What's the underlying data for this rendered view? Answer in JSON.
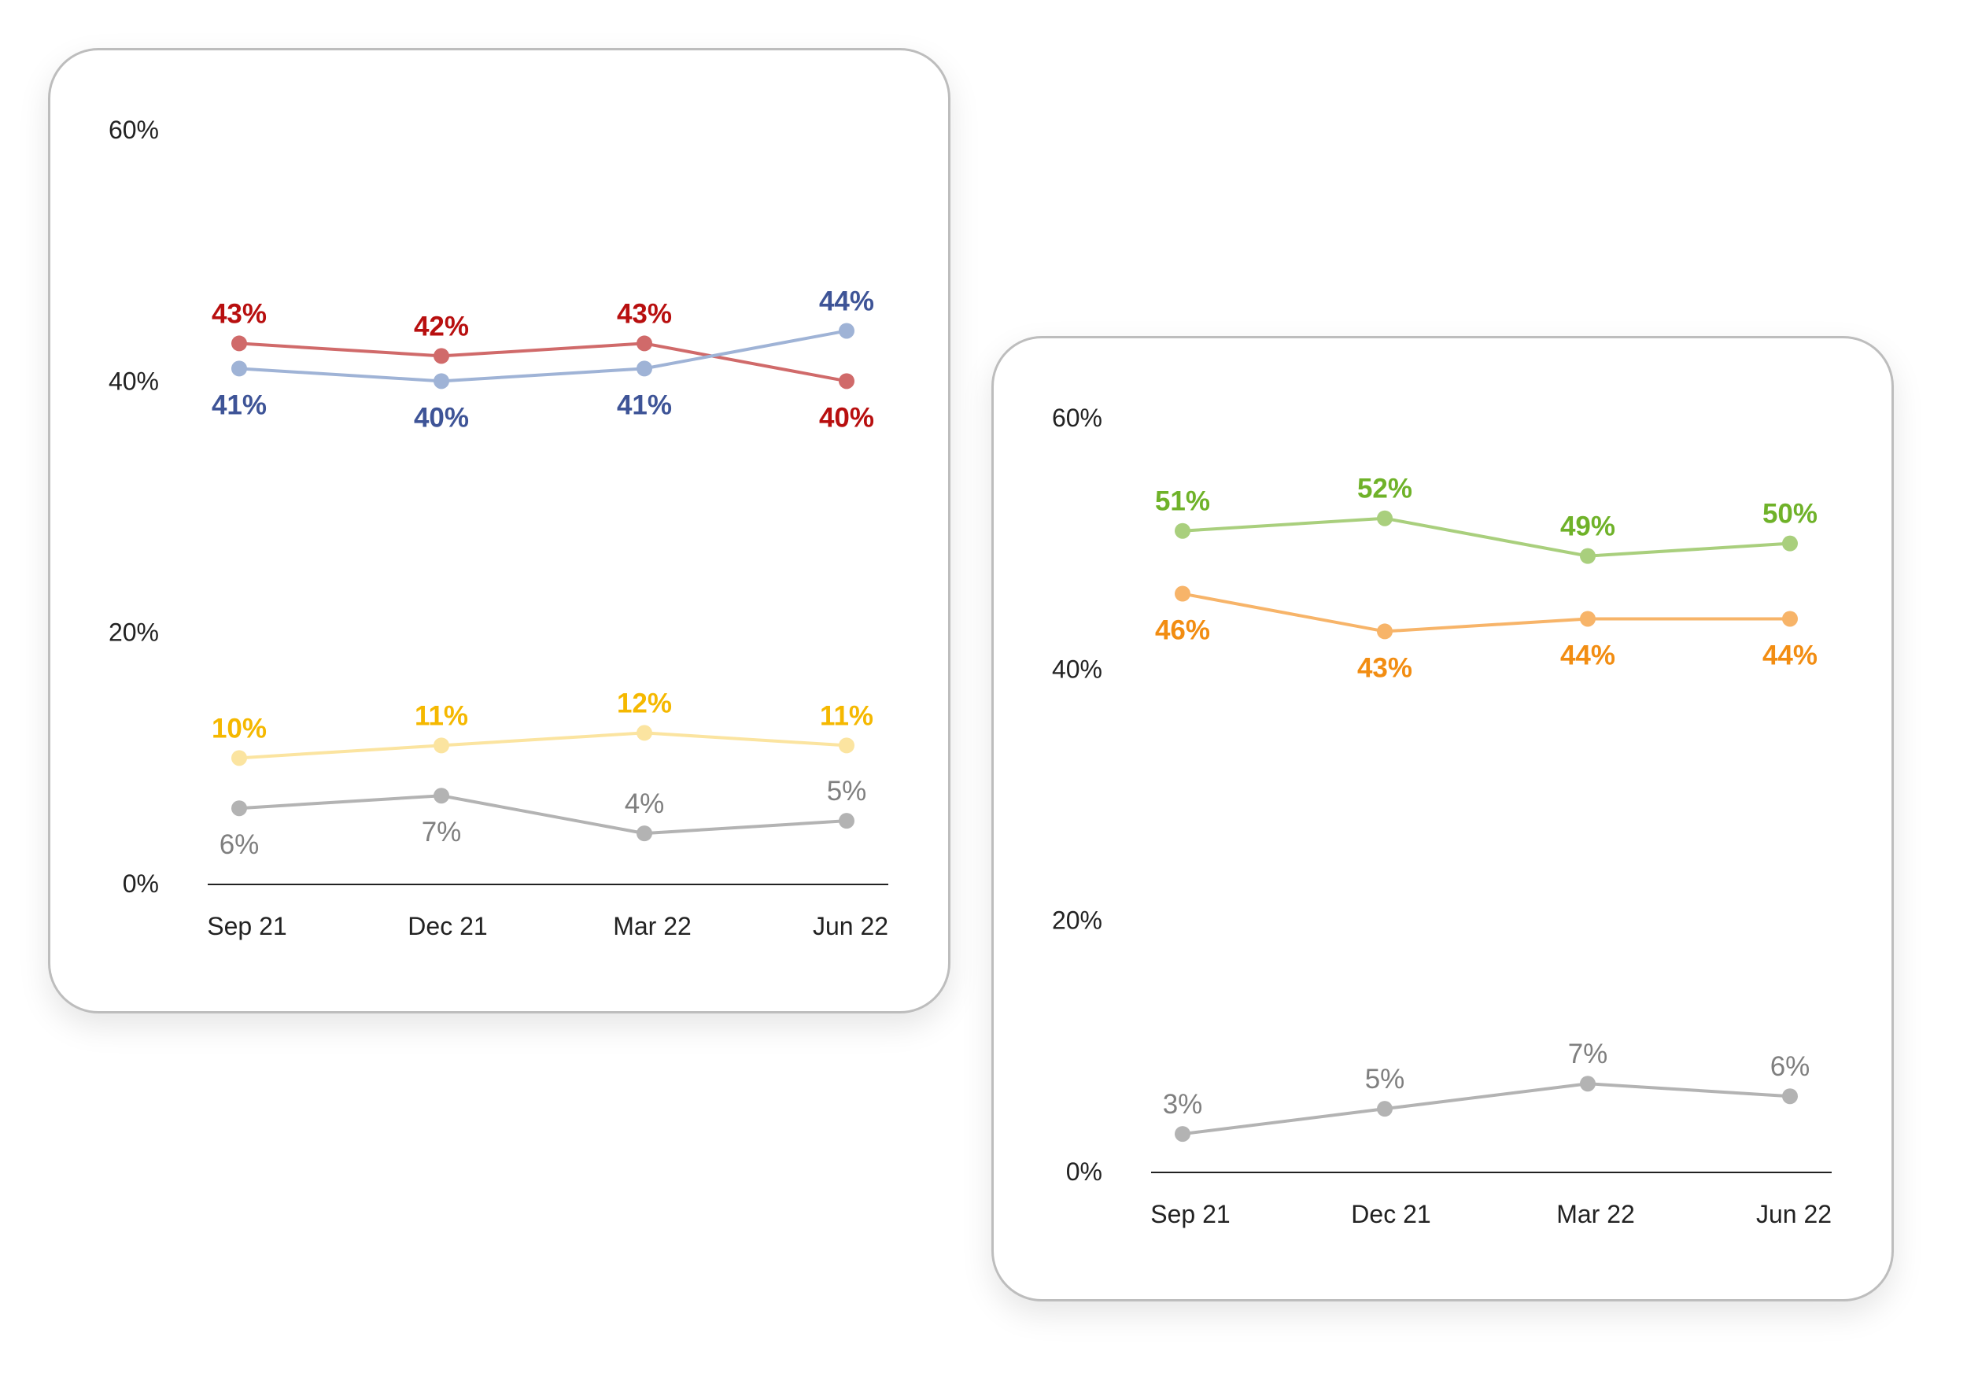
{
  "chart_data": [
    {
      "type": "line",
      "categories": [
        "Sep 21",
        "Dec 21",
        "Mar 22",
        "Jun 22"
      ],
      "ylim": [
        0,
        60
      ],
      "yticks": [
        "60%",
        "40%",
        "20%",
        "0%"
      ],
      "series": [
        {
          "values": [
            43,
            42,
            43,
            40
          ],
          "labels": [
            "43%",
            "42%",
            "43%",
            "40%"
          ],
          "line_color": "#d06a6a",
          "label_color": "#b80f0f",
          "label_pos": [
            "above",
            "above",
            "above",
            "below"
          ]
        },
        {
          "values": [
            41,
            40,
            41,
            44
          ],
          "labels": [
            "41%",
            "40%",
            "41%",
            "44%"
          ],
          "line_color": "#9fb3d6",
          "label_color": "#3e5497",
          "label_pos": [
            "below",
            "below",
            "below",
            "above"
          ]
        },
        {
          "values": [
            10,
            11,
            12,
            11
          ],
          "labels": [
            "10%",
            "11%",
            "12%",
            "11%"
          ],
          "line_color": "#fbe4a0",
          "label_color": "#f5b800",
          "label_pos": [
            "above",
            "above",
            "above",
            "above"
          ]
        },
        {
          "values": [
            6,
            7,
            4,
            5
          ],
          "labels": [
            "6%",
            "7%",
            "4%",
            "5%"
          ],
          "line_color": "#b3b3b3",
          "label_color": "#7f7f7f",
          "label_pos": [
            "below",
            "below",
            "above",
            "above"
          ]
        }
      ]
    },
    {
      "type": "line",
      "categories": [
        "Sep 21",
        "Dec 21",
        "Mar 22",
        "Jun 22"
      ],
      "ylim": [
        0,
        60
      ],
      "yticks": [
        "60%",
        "40%",
        "20%",
        "0%"
      ],
      "series": [
        {
          "values": [
            51,
            52,
            49,
            50
          ],
          "labels": [
            "51%",
            "52%",
            "49%",
            "50%"
          ],
          "line_color": "#a9cf7d",
          "label_color": "#6fb229",
          "label_pos": [
            "above",
            "above",
            "above",
            "above"
          ]
        },
        {
          "values": [
            46,
            43,
            44,
            44
          ],
          "labels": [
            "46%",
            "43%",
            "44%",
            "44%"
          ],
          "line_color": "#f7b469",
          "label_color": "#f28d12",
          "label_pos": [
            "below",
            "below",
            "below",
            "below"
          ]
        },
        {
          "values": [
            3,
            5,
            7,
            6
          ],
          "labels": [
            "3%",
            "5%",
            "7%",
            "6%"
          ],
          "line_color": "#b3b3b3",
          "label_color": "#7f7f7f",
          "label_pos": [
            "above",
            "above",
            "above",
            "above"
          ]
        }
      ]
    }
  ]
}
